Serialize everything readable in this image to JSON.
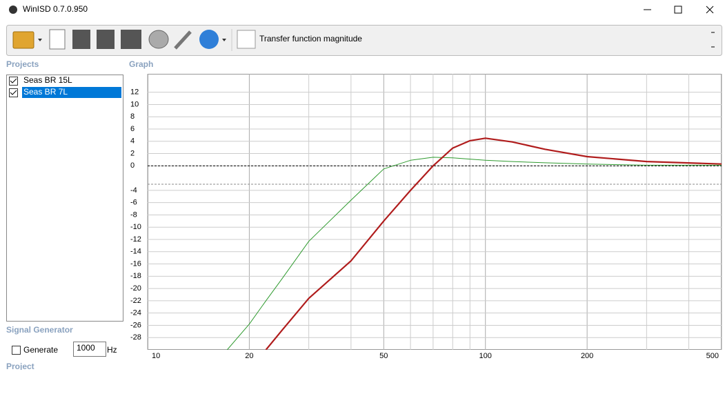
{
  "window": {
    "title": "WinISD 0.7.0.950"
  },
  "toolbar": {
    "graph_selector": "Transfer function magnitude"
  },
  "panels": {
    "projects": "Projects",
    "graph": "Graph",
    "signal_generator": "Signal Generator",
    "project": "Project"
  },
  "signal_generator": {
    "generate_label": "Generate",
    "frequency": 1000,
    "unit": "Hz"
  },
  "chart_data": {
    "type": "line",
    "xscale": "log",
    "x": [
      17.2,
      20,
      22.4,
      25,
      30,
      40,
      50,
      60,
      70,
      80,
      90,
      100,
      120,
      150,
      200,
      300,
      500
    ],
    "xlim": [
      10,
      500
    ],
    "xticks": [
      10,
      20,
      50,
      100,
      200,
      500
    ],
    "x_minor_grid": [
      30,
      40,
      60,
      70,
      80,
      90,
      300,
      400
    ],
    "ylim": [
      -30,
      15
    ],
    "yticks": [
      12,
      10,
      8,
      6,
      4,
      2,
      0,
      -4,
      -6,
      -8,
      -10,
      -12,
      -14,
      -16,
      -18,
      -20,
      -22,
      -24,
      -26,
      -28
    ],
    "grid": true,
    "ref_lines": [
      {
        "value": 0,
        "color": "#000000"
      },
      {
        "value": -3,
        "color": "#888888"
      }
    ],
    "series": [
      {
        "name": "Seas BR 15L",
        "color": "#2e9a2e",
        "values": [
          -30,
          -25.8,
          -22,
          -18.4,
          -12.3,
          -5.6,
          -0.5,
          0.9,
          1.4,
          1.3,
          1.1,
          0.9,
          0.7,
          0.5,
          0.3,
          0.1,
          0.1
        ]
      },
      {
        "name": "Seas BR 7L",
        "color": "#b01c1c",
        "values": [
          null,
          null,
          -30,
          -26.8,
          -21.6,
          -15.5,
          -9,
          -4,
          0,
          2.9,
          4.1,
          4.5,
          3.9,
          2.7,
          1.5,
          0.7,
          0.3
        ]
      }
    ]
  }
}
